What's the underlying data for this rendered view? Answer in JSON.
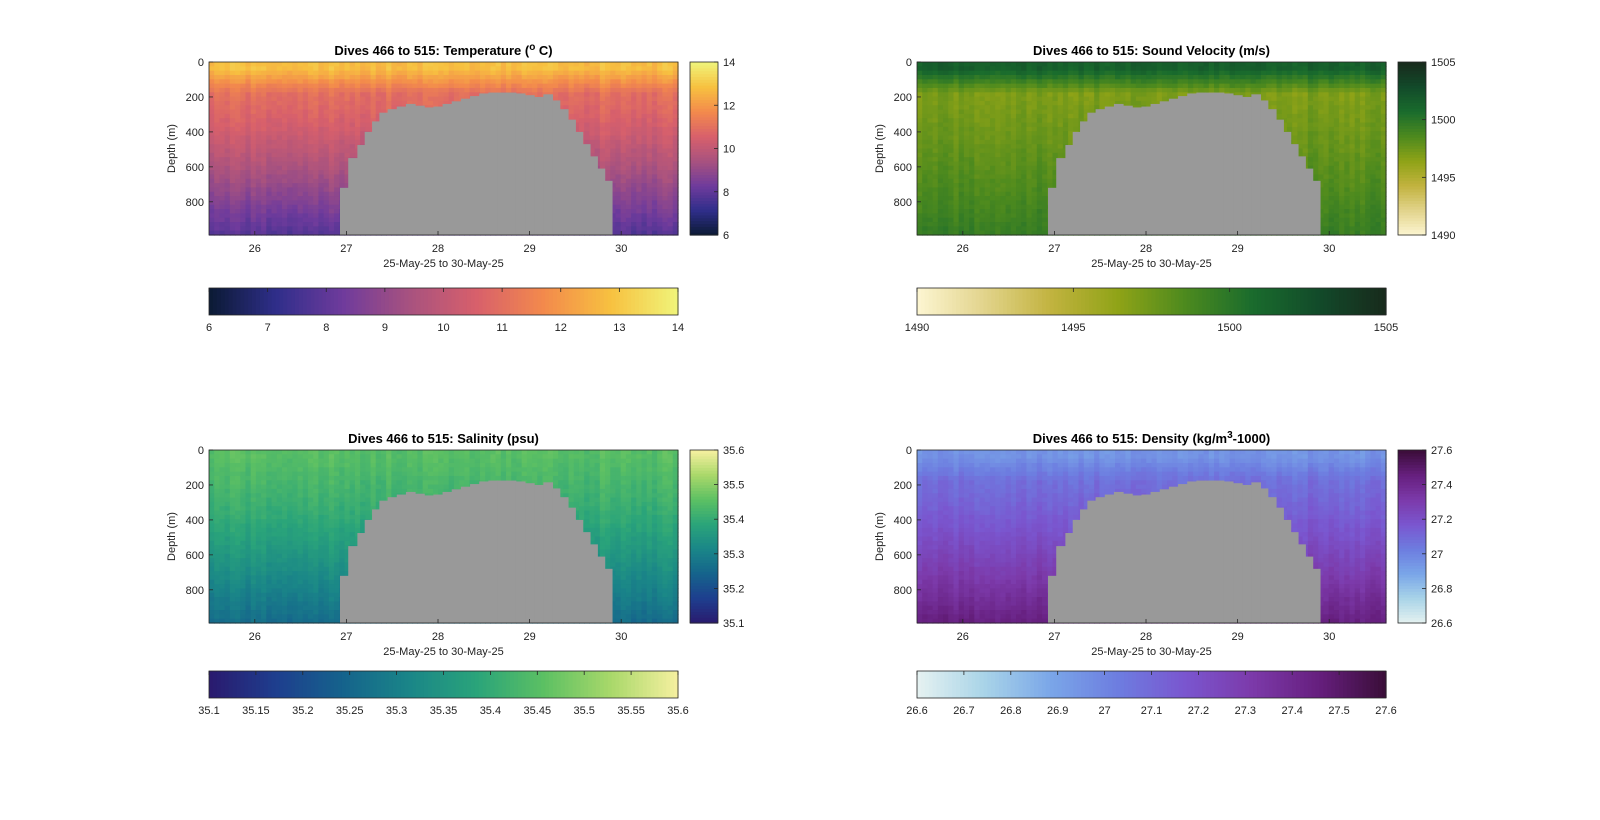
{
  "chart_data": [
    {
      "type": "heatmap",
      "title": "Dives 466 to 515: Temperature (",
      "title_sup": "o",
      "title_end": " C)",
      "xlabel": "25-May-25 to 30-May-25",
      "ylabel": "Depth (m)",
      "x_ticks": [
        "26",
        "27",
        "28",
        "29",
        "30"
      ],
      "x_tick_values": [
        26,
        27,
        28,
        29,
        30
      ],
      "xlim": [
        25.5,
        30.62
      ],
      "y_ticks": [
        "0",
        "200",
        "400",
        "600",
        "800"
      ],
      "y_tick_values": [
        0,
        200,
        400,
        600,
        800
      ],
      "ylim": [
        0,
        990
      ],
      "colormap": [
        "#0b1a33",
        "#2f2e8a",
        "#6f3b9c",
        "#a8527f",
        "#d8606b",
        "#f38a4c",
        "#f7c140",
        "#f0f47a"
      ],
      "color_range": [
        6,
        14
      ],
      "right_colorbar_ticks": [
        "6",
        "8",
        "10",
        "12",
        "14"
      ],
      "right_colorbar_values": [
        6,
        8,
        10,
        12,
        14
      ],
      "bottom_colorbar_ticks": [
        "6",
        "7",
        "8",
        "9",
        "10",
        "11",
        "12",
        "13",
        "14"
      ],
      "bottom_colorbar_values": [
        6,
        7,
        8,
        9,
        10,
        11,
        12,
        13,
        14
      ],
      "profile": {
        "surface": 12.8,
        "mixed_layer": 11.0,
        "deep": 7.8
      }
    },
    {
      "type": "heatmap",
      "title": "Dives 466 to 515: Sound Velocity (m/s)",
      "title_sup": "",
      "title_end": "",
      "xlabel": "25-May-25 to 30-May-25",
      "ylabel": "Depth (m)",
      "x_ticks": [
        "26",
        "27",
        "28",
        "29",
        "30"
      ],
      "x_tick_values": [
        26,
        27,
        28,
        29,
        30
      ],
      "xlim": [
        25.5,
        30.62
      ],
      "y_ticks": [
        "0",
        "200",
        "400",
        "600",
        "800"
      ],
      "y_tick_values": [
        0,
        200,
        400,
        600,
        800
      ],
      "ylim": [
        0,
        990
      ],
      "colormap": [
        "#fdf6d2",
        "#e2d48c",
        "#c2b33f",
        "#8fa317",
        "#4d8a1e",
        "#1a6c2d",
        "#124a2a",
        "#182a1c"
      ],
      "color_range": [
        1490,
        1505
      ],
      "right_colorbar_ticks": [
        "1490",
        "1495",
        "1500",
        "1505"
      ],
      "right_colorbar_values": [
        1490,
        1495,
        1500,
        1505
      ],
      "bottom_colorbar_ticks": [
        "1490",
        "1495",
        "1500",
        "1505"
      ],
      "bottom_colorbar_values": [
        1490,
        1495,
        1500,
        1505
      ],
      "profile": {
        "surface": 1501.5,
        "mixed_layer": 1497.0,
        "deep": 1499.5
      }
    },
    {
      "type": "heatmap",
      "title": "Dives 466 to 515: Salinity (psu)",
      "title_sup": "",
      "title_end": "",
      "xlabel": "25-May-25 to 30-May-25",
      "ylabel": "Depth (m)",
      "x_ticks": [
        "26",
        "27",
        "28",
        "29",
        "30"
      ],
      "x_tick_values": [
        26,
        27,
        28,
        29,
        30
      ],
      "xlim": [
        25.5,
        30.62
      ],
      "y_ticks": [
        "0",
        "200",
        "400",
        "600",
        "800"
      ],
      "y_tick_values": [
        0,
        200,
        400,
        600,
        800
      ],
      "ylim": [
        0,
        990
      ],
      "colormap": [
        "#2a1a6e",
        "#1e3e8e",
        "#15638c",
        "#1a8688",
        "#2aa47a",
        "#5cc063",
        "#a9d86a",
        "#f6f0a0"
      ],
      "color_range": [
        35.1,
        35.6
      ],
      "right_colorbar_ticks": [
        "35.1",
        "35.2",
        "35.3",
        "35.4",
        "35.5",
        "35.6"
      ],
      "right_colorbar_values": [
        35.1,
        35.2,
        35.3,
        35.4,
        35.5,
        35.6
      ],
      "bottom_colorbar_ticks": [
        "35.1",
        "35.15",
        "35.2",
        "35.25",
        "35.3",
        "35.35",
        "35.4",
        "35.45",
        "35.5",
        "35.55",
        "35.6"
      ],
      "bottom_colorbar_values": [
        35.1,
        35.15,
        35.2,
        35.25,
        35.3,
        35.35,
        35.4,
        35.45,
        35.5,
        35.55,
        35.6
      ],
      "profile": {
        "surface": 35.45,
        "mixed_layer": 35.43,
        "deep": 35.26
      }
    },
    {
      "type": "heatmap",
      "title": "Dives 466 to 515: Density (kg/m",
      "title_sup": "3",
      "title_end": "-1000)",
      "xlabel": "25-May-25 to 30-May-25",
      "ylabel": "Depth (m)",
      "x_ticks": [
        "26",
        "27",
        "28",
        "29",
        "30"
      ],
      "x_tick_values": [
        26,
        27,
        28,
        29,
        30
      ],
      "xlim": [
        25.5,
        30.62
      ],
      "y_ticks": [
        "0",
        "200",
        "400",
        "600",
        "800"
      ],
      "y_tick_values": [
        0,
        200,
        400,
        600,
        800
      ],
      "ylim": [
        0,
        990
      ],
      "colormap": [
        "#e6f2f1",
        "#a9d4e8",
        "#7aa6e8",
        "#6d7de0",
        "#7a56cf",
        "#7c3aaa",
        "#661f7e",
        "#3a0d38"
      ],
      "color_range": [
        26.6,
        27.6
      ],
      "right_colorbar_ticks": [
        "26.6",
        "26.8",
        "27",
        "27.2",
        "27.4",
        "27.6"
      ],
      "right_colorbar_values": [
        26.6,
        26.8,
        27.0,
        27.2,
        27.4,
        27.6
      ],
      "bottom_colorbar_ticks": [
        "26.6",
        "26.7",
        "26.8",
        "26.9",
        "27",
        "27.1",
        "27.2",
        "27.3",
        "27.4",
        "27.5",
        "27.6"
      ],
      "bottom_colorbar_values": [
        26.6,
        26.7,
        26.8,
        26.9,
        27.0,
        27.1,
        27.2,
        27.3,
        27.4,
        27.5,
        27.6
      ],
      "profile": {
        "surface": 26.95,
        "mixed_layer": 27.08,
        "deep": 27.45
      }
    }
  ],
  "bathymetry": {
    "color": "#999999",
    "x": [
      26.93,
      27.02,
      27.12,
      27.2,
      27.28,
      27.36,
      27.45,
      27.55,
      27.65,
      27.75,
      27.85,
      27.95,
      28.05,
      28.15,
      28.25,
      28.35,
      28.45,
      28.55,
      28.65,
      28.75,
      28.85,
      28.95,
      29.05,
      29.15,
      29.25,
      29.33,
      29.42,
      29.5,
      29.58,
      29.66,
      29.74,
      29.82,
      29.9
    ],
    "depth": [
      720,
      550,
      475,
      400,
      340,
      290,
      270,
      255,
      240,
      250,
      260,
      255,
      240,
      225,
      210,
      195,
      180,
      175,
      175,
      175,
      180,
      190,
      200,
      185,
      220,
      270,
      330,
      400,
      470,
      540,
      610,
      680,
      990
    ]
  }
}
